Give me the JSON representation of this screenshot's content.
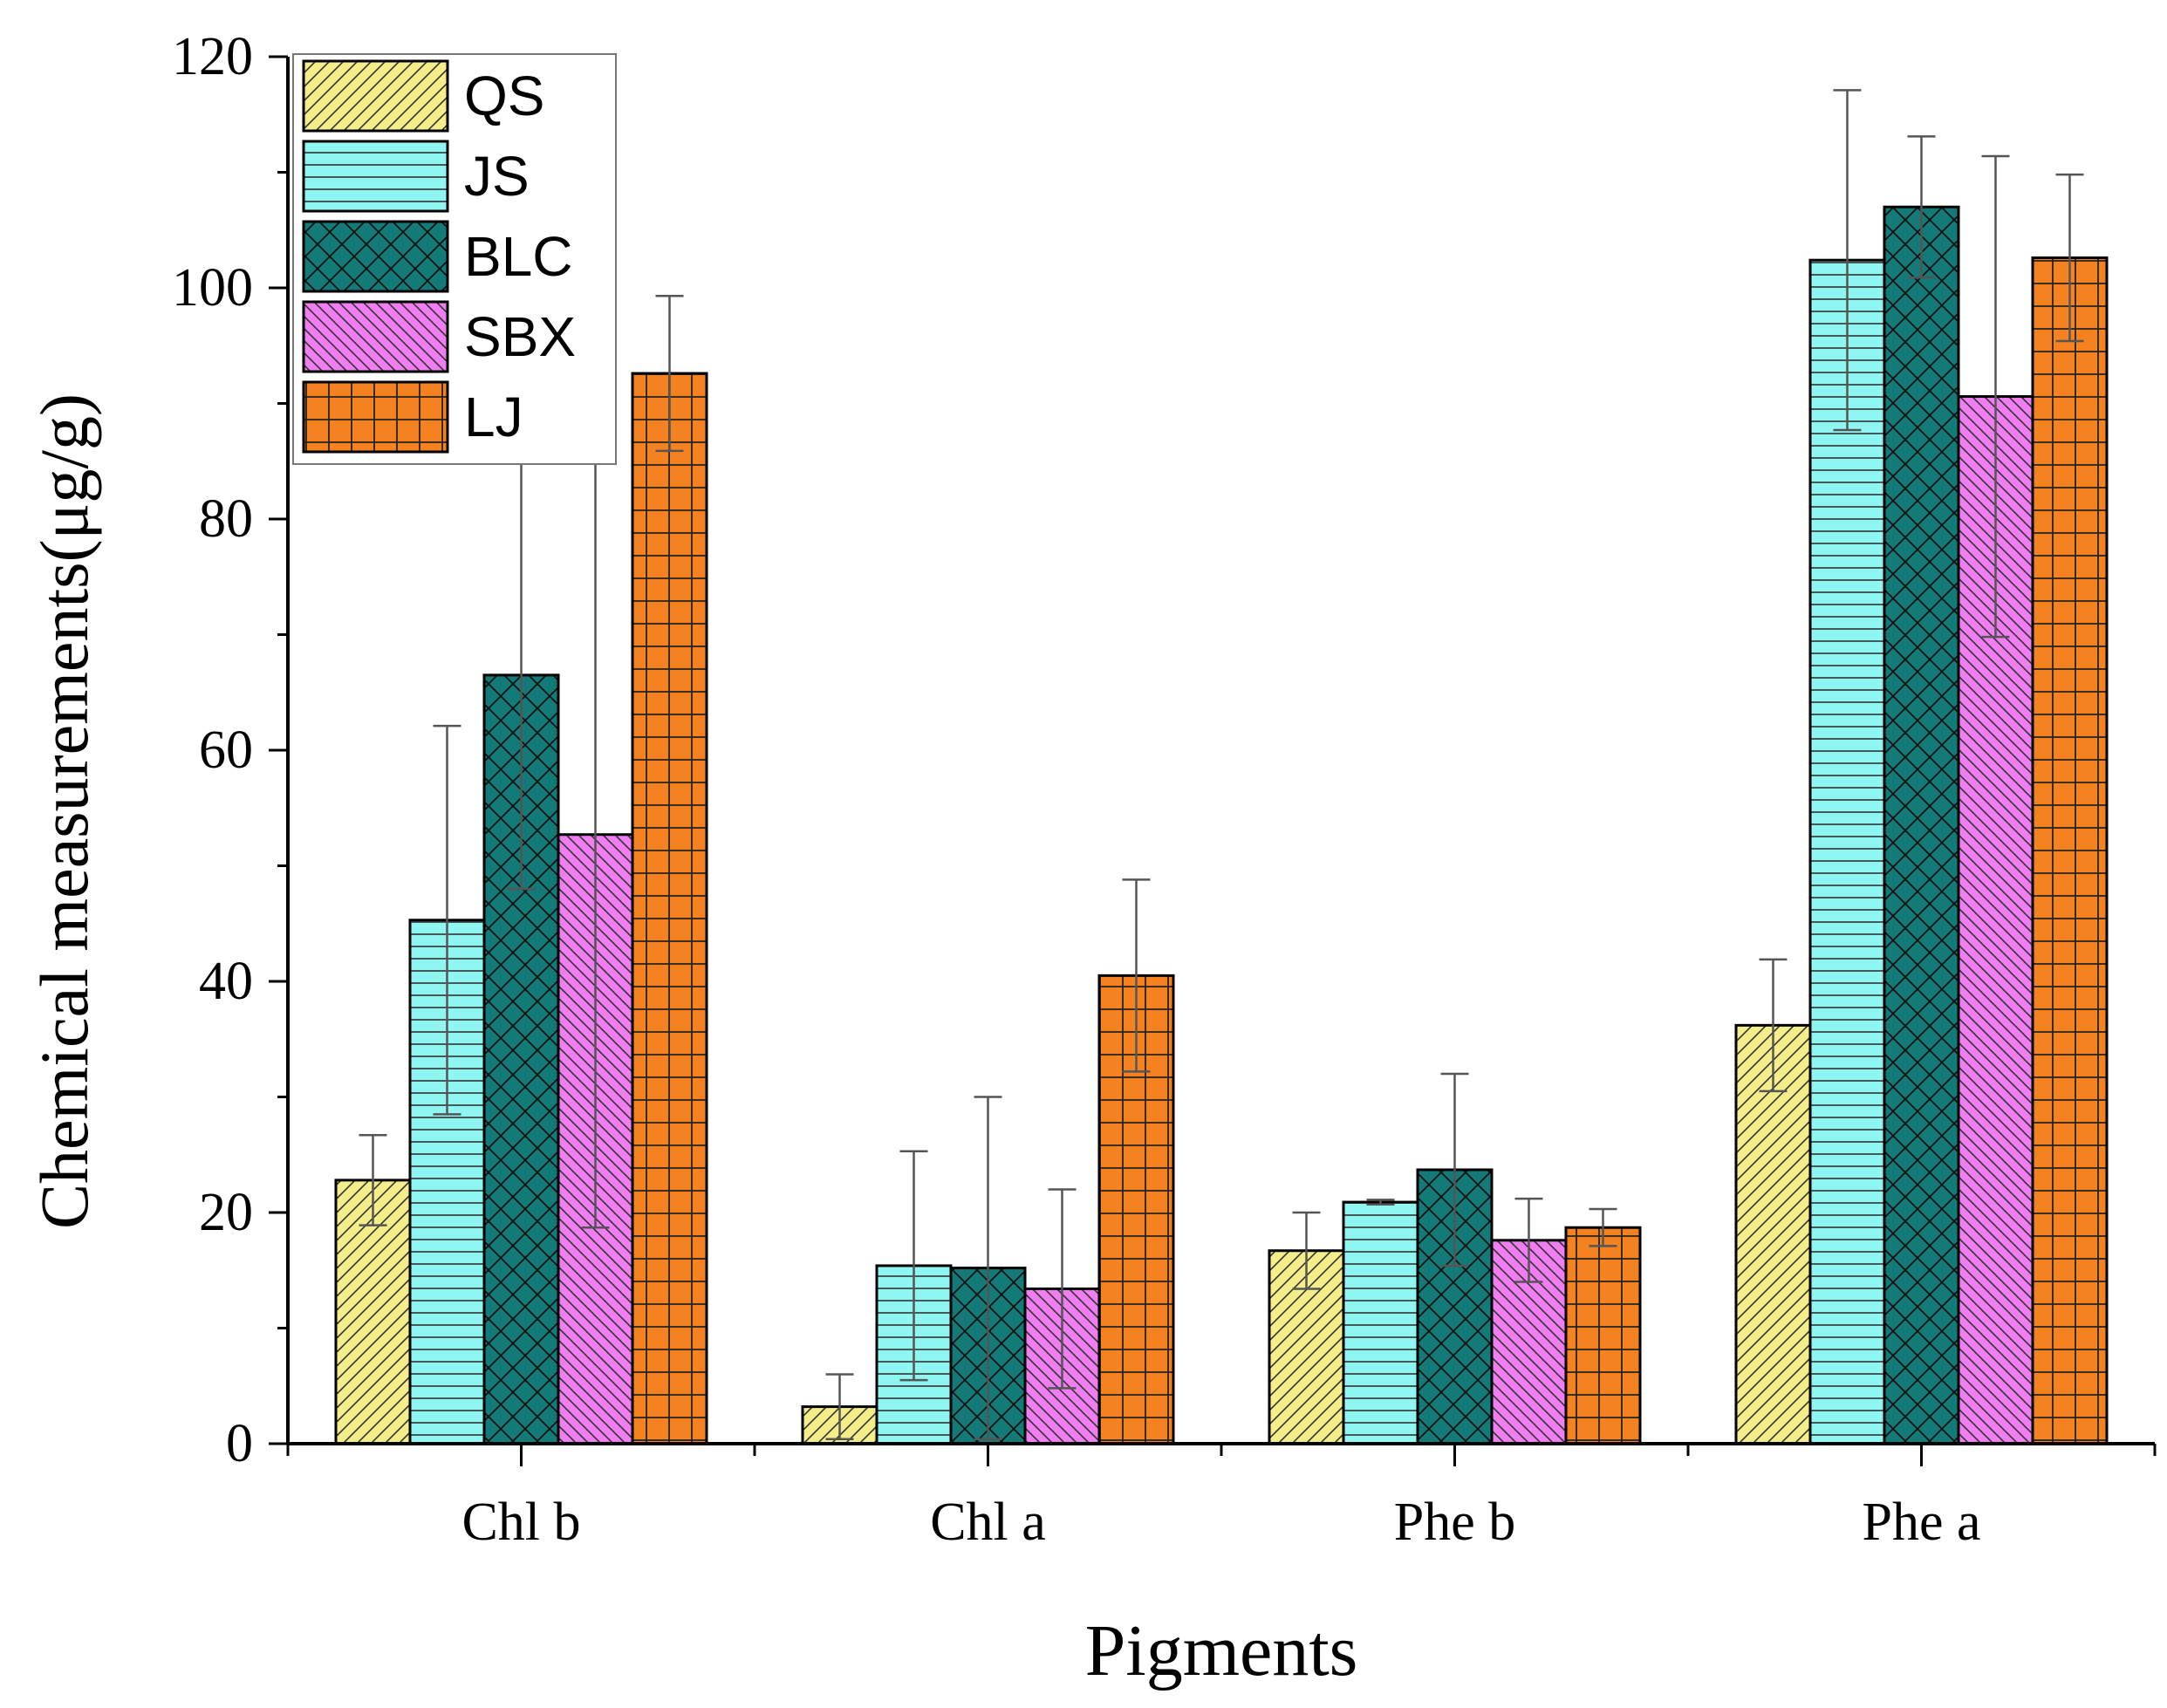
{
  "chart_data": {
    "type": "bar",
    "title": "",
    "xlabel": "Pigments",
    "ylabel": "Chemical measurements(μg/g)",
    "ylim": [
      0,
      120
    ],
    "yticks": [
      0,
      20,
      40,
      60,
      80,
      100,
      120
    ],
    "categories": [
      "Chl b",
      "Chl a",
      "Phe b",
      "Phe a"
    ],
    "legend_position": "top-left",
    "grid": false,
    "series": [
      {
        "name": "QS",
        "color": "#f4ee8a",
        "pattern": "diag-up",
        "values": [
          22.8,
          3.2,
          16.7,
          36.2
        ],
        "errors": [
          3.9,
          2.8,
          3.3,
          5.7
        ]
      },
      {
        "name": "JS",
        "color": "#8ff6f2",
        "pattern": "horizontal",
        "values": [
          45.3,
          15.4,
          20.9,
          102.4
        ],
        "errors": [
          16.8,
          9.9,
          0.2,
          14.7
        ]
      },
      {
        "name": "BLC",
        "color": "#137a78",
        "pattern": "crosshatch",
        "values": [
          66.5,
          15.2,
          23.7,
          107.0
        ],
        "errors": [
          18.5,
          14.8,
          8.3,
          6.1
        ]
      },
      {
        "name": "SBX",
        "color": "#f07ef2",
        "pattern": "diag-down",
        "values": [
          52.7,
          13.4,
          17.6,
          90.6
        ],
        "errors": [
          34.0,
          8.6,
          3.6,
          20.8
        ]
      },
      {
        "name": "LJ",
        "color": "#f58220",
        "pattern": "grid",
        "values": [
          92.6,
          40.5,
          18.7,
          102.6
        ],
        "errors": [
          6.7,
          8.3,
          1.6,
          7.2
        ]
      }
    ]
  }
}
